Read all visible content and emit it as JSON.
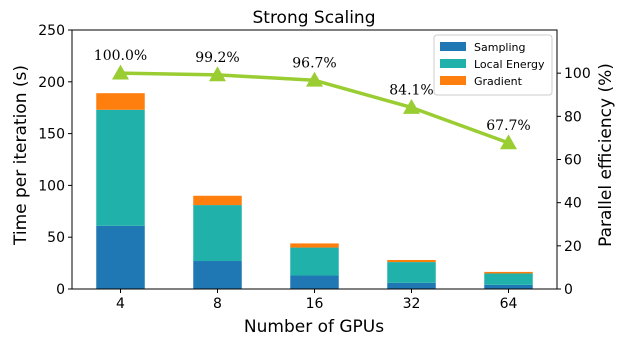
{
  "chart_data": {
    "type": "bar",
    "stacked": true,
    "title": "Strong Scaling",
    "xlabel": "Number of GPUs",
    "ylabel": "Time per iteration (s)",
    "y2label": "Parallel efficiency (%)",
    "categories": [
      "4",
      "8",
      "16",
      "32",
      "64"
    ],
    "ylim": [
      0,
      250
    ],
    "y2lim": [
      0,
      120
    ],
    "yticks": [
      0,
      50,
      100,
      150,
      200,
      250
    ],
    "y2ticks": [
      0,
      20,
      40,
      60,
      80,
      100
    ],
    "series": [
      {
        "name": "Sampling",
        "color": "#1f77b4",
        "values": [
          61,
          27,
          13,
          6,
          4
        ]
      },
      {
        "name": "Local Energy",
        "color": "#20b2aa",
        "values": [
          112,
          54,
          27,
          20,
          11
        ]
      },
      {
        "name": "Gradient",
        "color": "#ff7f0e",
        "values": [
          16,
          9,
          4,
          2,
          1.5
        ]
      }
    ],
    "efficiency": {
      "color": "#9acd32",
      "values": [
        100.0,
        99.2,
        96.7,
        84.1,
        67.7
      ],
      "labels": [
        "100.0%",
        "99.2%",
        "96.7%",
        "84.1%",
        "67.7%"
      ]
    },
    "legend_position": "top-right",
    "grid": false
  }
}
